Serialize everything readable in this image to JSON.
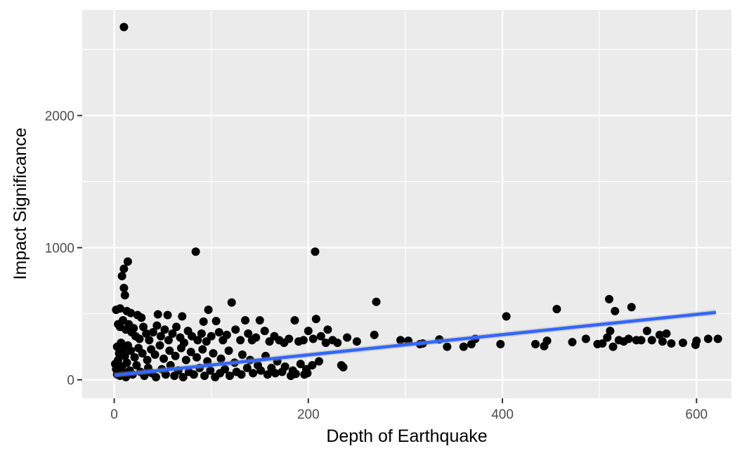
{
  "chart_data": {
    "type": "scatter",
    "title": "",
    "xlabel": "Depth of Earthquake",
    "ylabel": "Impact Significance",
    "xlim": [
      -33,
      636
    ],
    "ylim": [
      -140,
      2800
    ],
    "x_ticks": [
      0,
      200,
      400,
      600
    ],
    "y_ticks": [
      0,
      1000,
      2000
    ],
    "x_minor_ticks": [
      100,
      300,
      500
    ],
    "y_minor_ticks": [
      500,
      1500,
      2500
    ],
    "grid": true,
    "legend": "none",
    "colors": {
      "panel": "#ebebeb",
      "grid": "#ffffff",
      "point": "#000000",
      "trend": "#3366ff",
      "tick_text": "#4d4d4d"
    },
    "trend_line": {
      "method": "linear",
      "x": [
        0,
        620
      ],
      "y": [
        35,
        510
      ]
    },
    "series": [
      {
        "points": [
          [
            10,
            2670
          ],
          [
            84,
            970
          ],
          [
            207,
            970
          ],
          [
            14,
            895
          ],
          [
            10,
            840
          ],
          [
            8,
            785
          ],
          [
            10,
            695
          ],
          [
            11,
            640
          ],
          [
            6,
            540
          ],
          [
            2,
            530
          ],
          [
            13,
            520
          ],
          [
            17,
            505
          ],
          [
            24,
            490
          ],
          [
            28,
            470
          ],
          [
            45,
            495
          ],
          [
            55,
            490
          ],
          [
            70,
            480
          ],
          [
            92,
            440
          ],
          [
            97,
            530
          ],
          [
            105,
            445
          ],
          [
            121,
            585
          ],
          [
            135,
            450
          ],
          [
            150,
            450
          ],
          [
            186,
            450
          ],
          [
            208,
            460
          ],
          [
            220,
            380
          ],
          [
            240,
            320
          ],
          [
            250,
            290
          ],
          [
            268,
            340
          ],
          [
            270,
            590
          ],
          [
            295,
            300
          ],
          [
            303,
            295
          ],
          [
            315,
            270
          ],
          [
            318,
            275
          ],
          [
            335,
            305
          ],
          [
            343,
            250
          ],
          [
            360,
            250
          ],
          [
            368,
            270
          ],
          [
            372,
            310
          ],
          [
            398,
            270
          ],
          [
            404,
            480
          ],
          [
            434,
            270
          ],
          [
            443,
            255
          ],
          [
            446,
            295
          ],
          [
            456,
            535
          ],
          [
            472,
            285
          ],
          [
            486,
            310
          ],
          [
            498,
            270
          ],
          [
            503,
            275
          ],
          [
            508,
            320
          ],
          [
            510,
            610
          ],
          [
            511,
            370
          ],
          [
            514,
            250
          ],
          [
            516,
            520
          ],
          [
            520,
            300
          ],
          [
            525,
            290
          ],
          [
            530,
            310
          ],
          [
            533,
            550
          ],
          [
            538,
            300
          ],
          [
            543,
            300
          ],
          [
            549,
            370
          ],
          [
            554,
            300
          ],
          [
            562,
            340
          ],
          [
            565,
            290
          ],
          [
            569,
            350
          ],
          [
            574,
            275
          ],
          [
            586,
            280
          ],
          [
            599,
            265
          ],
          [
            600,
            295
          ],
          [
            612,
            310
          ],
          [
            622,
            310
          ],
          [
            4,
            420
          ],
          [
            6,
            400
          ],
          [
            9,
            450
          ],
          [
            12,
            380
          ],
          [
            15,
            420
          ],
          [
            18,
            360
          ],
          [
            20,
            390
          ],
          [
            22,
            330
          ],
          [
            26,
            310
          ],
          [
            30,
            400
          ],
          [
            33,
            350
          ],
          [
            36,
            300
          ],
          [
            40,
            360
          ],
          [
            44,
            410
          ],
          [
            48,
            330
          ],
          [
            52,
            380
          ],
          [
            56,
            300
          ],
          [
            60,
            350
          ],
          [
            64,
            400
          ],
          [
            68,
            320
          ],
          [
            72,
            280
          ],
          [
            76,
            370
          ],
          [
            80,
            330
          ],
          [
            86,
            300
          ],
          [
            90,
            350
          ],
          [
            95,
            290
          ],
          [
            100,
            330
          ],
          [
            108,
            360
          ],
          [
            112,
            300
          ],
          [
            116,
            340
          ],
          [
            125,
            380
          ],
          [
            130,
            300
          ],
          [
            138,
            350
          ],
          [
            142,
            300
          ],
          [
            146,
            320
          ],
          [
            155,
            370
          ],
          [
            160,
            290
          ],
          [
            165,
            330
          ],
          [
            170,
            300
          ],
          [
            175,
            280
          ],
          [
            180,
            310
          ],
          [
            190,
            290
          ],
          [
            195,
            300
          ],
          [
            200,
            370
          ],
          [
            205,
            310
          ],
          [
            213,
            330
          ],
          [
            218,
            280
          ],
          [
            225,
            300
          ],
          [
            230,
            280
          ],
          [
            3,
            250
          ],
          [
            5,
            200
          ],
          [
            7,
            280
          ],
          [
            9,
            230
          ],
          [
            11,
            180
          ],
          [
            14,
            260
          ],
          [
            17,
            220
          ],
          [
            21,
            170
          ],
          [
            25,
            240
          ],
          [
            29,
            200
          ],
          [
            34,
            150
          ],
          [
            38,
            230
          ],
          [
            42,
            190
          ],
          [
            47,
            260
          ],
          [
            51,
            160
          ],
          [
            57,
            220
          ],
          [
            63,
            180
          ],
          [
            69,
            240
          ],
          [
            74,
            150
          ],
          [
            79,
            210
          ],
          [
            85,
            170
          ],
          [
            91,
            230
          ],
          [
            96,
            140
          ],
          [
            102,
            200
          ],
          [
            110,
            160
          ],
          [
            118,
            220
          ],
          [
            124,
            130
          ],
          [
            132,
            190
          ],
          [
            140,
            150
          ],
          [
            148,
            110
          ],
          [
            156,
            180
          ],
          [
            162,
            90
          ],
          [
            168,
            140
          ],
          [
            176,
            100
          ],
          [
            184,
            70
          ],
          [
            192,
            120
          ],
          [
            198,
            80
          ],
          [
            204,
            110
          ],
          [
            211,
            140
          ],
          [
            234,
            110
          ],
          [
            236,
            95
          ],
          [
            1,
            120
          ],
          [
            2,
            80
          ],
          [
            3,
            40
          ],
          [
            4,
            150
          ],
          [
            5,
            60
          ],
          [
            6,
            30
          ],
          [
            8,
            100
          ],
          [
            10,
            50
          ],
          [
            12,
            20
          ],
          [
            13,
            130
          ],
          [
            16,
            70
          ],
          [
            19,
            40
          ],
          [
            23,
            110
          ],
          [
            27,
            60
          ],
          [
            31,
            30
          ],
          [
            35,
            90
          ],
          [
            39,
            50
          ],
          [
            43,
            20
          ],
          [
            49,
            80
          ],
          [
            53,
            40
          ],
          [
            58,
            110
          ],
          [
            62,
            30
          ],
          [
            66,
            70
          ],
          [
            71,
            20
          ],
          [
            77,
            60
          ],
          [
            82,
            40
          ],
          [
            88,
            90
          ],
          [
            93,
            30
          ],
          [
            99,
            70
          ],
          [
            104,
            20
          ],
          [
            109,
            50
          ],
          [
            114,
            80
          ],
          [
            119,
            30
          ],
          [
            126,
            60
          ],
          [
            131,
            40
          ],
          [
            137,
            90
          ],
          [
            143,
            50
          ],
          [
            151,
            70
          ],
          [
            158,
            40
          ],
          [
            166,
            50
          ],
          [
            173,
            60
          ],
          [
            182,
            30
          ],
          [
            187,
            45
          ],
          [
            196,
            40
          ],
          [
            199,
            50
          ]
        ]
      }
    ]
  }
}
